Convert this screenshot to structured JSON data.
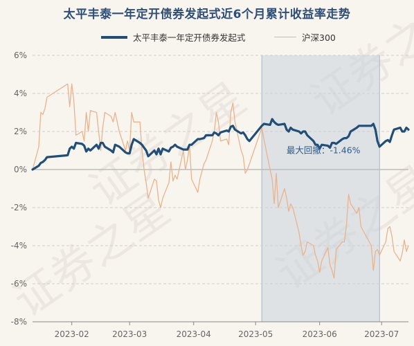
{
  "chart_data": {
    "type": "line",
    "title": "太平丰泰一年定开债券发起式近6个月累计收益率走势",
    "xlabel": "",
    "ylabel": "",
    "ylim": [
      -8,
      6
    ],
    "y_ticks": [
      "6%",
      "4%",
      "2%",
      "0%",
      "-2%",
      "-4%",
      "-6%",
      "-8%"
    ],
    "x_ticks": [
      "2023-02",
      "2023-03",
      "2023-04",
      "2023-05",
      "2023-06",
      "2023-07"
    ],
    "x_range": [
      "2023-01-13",
      "2023-07-14"
    ],
    "grid": true,
    "legend_position": "top-center",
    "annotation": "最大回撤：-1.46%",
    "drawdown_range": [
      "2023-05-04",
      "2023-06-30"
    ],
    "watermark": "证券之星",
    "series": [
      {
        "name": "太平丰泰一年定开债券发起式",
        "color": "#1f4e79",
        "x": [
          "2023-01-13",
          "2023-01-16",
          "2023-01-17",
          "2023-01-18",
          "2023-01-19",
          "2023-01-20",
          "2023-01-30",
          "2023-01-31",
          "2023-02-01",
          "2023-02-02",
          "2023-02-03",
          "2023-02-06",
          "2023-02-07",
          "2023-02-08",
          "2023-02-09",
          "2023-02-10",
          "2023-02-13",
          "2023-02-14",
          "2023-02-15",
          "2023-02-16",
          "2023-02-17",
          "2023-02-20",
          "2023-02-21",
          "2023-02-22",
          "2023-02-23",
          "2023-02-24",
          "2023-02-27",
          "2023-02-28",
          "2023-03-01",
          "2023-03-02",
          "2023-03-03",
          "2023-03-06",
          "2023-03-07",
          "2023-03-08",
          "2023-03-09",
          "2023-03-10",
          "2023-03-13",
          "2023-03-14",
          "2023-03-15",
          "2023-03-16",
          "2023-03-17",
          "2023-03-20",
          "2023-03-21",
          "2023-03-22",
          "2023-03-23",
          "2023-03-24",
          "2023-03-27",
          "2023-03-28",
          "2023-03-29",
          "2023-03-30",
          "2023-03-31",
          "2023-04-03",
          "2023-04-04",
          "2023-04-06",
          "2023-04-07",
          "2023-04-10",
          "2023-04-11",
          "2023-04-12",
          "2023-04-13",
          "2023-04-14",
          "2023-04-17",
          "2023-04-18",
          "2023-04-19",
          "2023-04-20",
          "2023-04-21",
          "2023-04-24",
          "2023-04-25",
          "2023-04-26",
          "2023-04-27",
          "2023-04-28",
          "2023-05-04",
          "2023-05-05",
          "2023-05-08",
          "2023-05-09",
          "2023-05-10",
          "2023-05-11",
          "2023-05-12",
          "2023-05-15",
          "2023-05-16",
          "2023-05-17",
          "2023-05-18",
          "2023-05-19",
          "2023-05-22",
          "2023-05-23",
          "2023-05-24",
          "2023-05-25",
          "2023-05-26",
          "2023-05-29",
          "2023-05-30",
          "2023-05-31",
          "2023-06-01",
          "2023-06-02",
          "2023-06-05",
          "2023-06-06",
          "2023-06-07",
          "2023-06-08",
          "2023-06-09",
          "2023-06-12",
          "2023-06-13",
          "2023-06-14",
          "2023-06-15",
          "2023-06-16",
          "2023-06-19",
          "2023-06-20",
          "2023-06-21",
          "2023-06-26",
          "2023-06-27",
          "2023-06-28",
          "2023-06-29",
          "2023-06-30",
          "2023-07-03",
          "2023-07-04",
          "2023-07-05",
          "2023-07-06",
          "2023-07-07",
          "2023-07-10",
          "2023-07-11",
          "2023-07-12",
          "2023-07-13",
          "2023-07-14"
        ],
        "values": [
          0.0,
          0.2,
          0.35,
          0.4,
          0.5,
          0.65,
          0.75,
          1.1,
          1.2,
          1.1,
          1.4,
          1.35,
          1.25,
          0.95,
          1.1,
          1.0,
          1.3,
          1.1,
          1.4,
          1.4,
          1.2,
          1.0,
          0.9,
          1.3,
          1.25,
          1.2,
          0.9,
          0.85,
          0.85,
          1.3,
          1.6,
          1.4,
          1.3,
          1.15,
          1.0,
          0.7,
          1.0,
          0.8,
          1.1,
          0.8,
          1.1,
          0.95,
          1.15,
          1.2,
          1.3,
          1.2,
          1.05,
          1.05,
          1.05,
          1.3,
          1.3,
          1.6,
          1.6,
          1.65,
          1.8,
          1.8,
          1.95,
          1.9,
          1.8,
          1.95,
          2.05,
          2.0,
          2.25,
          2.3,
          2.1,
          1.9,
          1.95,
          1.8,
          1.6,
          1.5,
          2.3,
          2.4,
          2.35,
          2.65,
          2.5,
          2.4,
          2.35,
          2.4,
          2.1,
          2.0,
          2.2,
          2.1,
          2.0,
          1.9,
          2.0,
          2.0,
          1.8,
          1.5,
          1.3,
          1.3,
          1.1,
          1.3,
          1.25,
          1.15,
          1.4,
          1.4,
          1.35,
          1.6,
          1.65,
          1.65,
          1.75,
          2.0,
          2.2,
          2.3,
          2.3,
          2.3,
          2.4,
          2.1,
          1.5,
          1.2,
          1.5,
          1.55,
          1.45,
          1.8,
          2.1,
          2.2,
          2.0,
          2.0,
          2.2,
          2.1
        ]
      },
      {
        "name": "沪深300",
        "color": "#eab38c",
        "x": [
          "2023-01-13",
          "2023-01-16",
          "2023-01-17",
          "2023-01-18",
          "2023-01-19",
          "2023-01-20",
          "2023-01-30",
          "2023-01-31",
          "2023-02-01",
          "2023-02-02",
          "2023-02-03",
          "2023-02-06",
          "2023-02-07",
          "2023-02-08",
          "2023-02-09",
          "2023-02-10",
          "2023-02-13",
          "2023-02-14",
          "2023-02-15",
          "2023-02-16",
          "2023-02-17",
          "2023-02-20",
          "2023-02-21",
          "2023-02-22",
          "2023-02-23",
          "2023-02-24",
          "2023-02-27",
          "2023-02-28",
          "2023-03-01",
          "2023-03-02",
          "2023-03-03",
          "2023-03-06",
          "2023-03-07",
          "2023-03-08",
          "2023-03-09",
          "2023-03-10",
          "2023-03-13",
          "2023-03-14",
          "2023-03-15",
          "2023-03-16",
          "2023-03-17",
          "2023-03-20",
          "2023-03-21",
          "2023-03-22",
          "2023-03-23",
          "2023-03-24",
          "2023-03-27",
          "2023-03-28",
          "2023-03-29",
          "2023-03-30",
          "2023-03-31",
          "2023-04-03",
          "2023-04-04",
          "2023-04-06",
          "2023-04-07",
          "2023-04-10",
          "2023-04-11",
          "2023-04-12",
          "2023-04-13",
          "2023-04-14",
          "2023-04-17",
          "2023-04-18",
          "2023-04-19",
          "2023-04-20",
          "2023-04-21",
          "2023-04-24",
          "2023-04-25",
          "2023-04-26",
          "2023-04-27",
          "2023-04-28",
          "2023-05-04",
          "2023-05-05",
          "2023-05-08",
          "2023-05-09",
          "2023-05-10",
          "2023-05-11",
          "2023-05-12",
          "2023-05-15",
          "2023-05-16",
          "2023-05-17",
          "2023-05-18",
          "2023-05-19",
          "2023-05-22",
          "2023-05-23",
          "2023-05-24",
          "2023-05-25",
          "2023-05-26",
          "2023-05-29",
          "2023-05-30",
          "2023-05-31",
          "2023-06-01",
          "2023-06-02",
          "2023-06-05",
          "2023-06-06",
          "2023-06-07",
          "2023-06-08",
          "2023-06-09",
          "2023-06-12",
          "2023-06-13",
          "2023-06-14",
          "2023-06-15",
          "2023-06-16",
          "2023-06-19",
          "2023-06-20",
          "2023-06-21",
          "2023-06-26",
          "2023-06-27",
          "2023-06-28",
          "2023-06-29",
          "2023-06-30",
          "2023-07-03",
          "2023-07-04",
          "2023-07-05",
          "2023-07-06",
          "2023-07-07",
          "2023-07-10",
          "2023-07-11",
          "2023-07-12",
          "2023-07-13",
          "2023-07-14"
        ],
        "values": [
          0.0,
          1.2,
          3.0,
          2.9,
          3.2,
          3.8,
          4.5,
          3.3,
          4.5,
          3.6,
          1.8,
          2.0,
          1.5,
          3.0,
          2.0,
          3.1,
          3.0,
          2.0,
          1.0,
          2.2,
          3.0,
          2.8,
          2.5,
          3.0,
          2.5,
          2.0,
          1.0,
          1.5,
          1.0,
          3.0,
          2.5,
          2.5,
          1.0,
          0.0,
          -0.7,
          -1.5,
          -0.5,
          -0.6,
          -1.6,
          -2.0,
          -1.5,
          -0.7,
          0.4,
          -0.6,
          -0.3,
          -0.5,
          1.0,
          0.0,
          0.5,
          1.3,
          -0.5,
          -1.2,
          -0.5,
          0.3,
          0.5,
          1.5,
          2.0,
          3.0,
          2.5,
          1.5,
          1.6,
          1.3,
          3.0,
          3.5,
          2.5,
          1.0,
          0.7,
          -0.2,
          0.0,
          0.3,
          2.2,
          1.6,
          0.0,
          -0.5,
          -1.8,
          -0.2,
          -2.0,
          -1.0,
          -1.5,
          -2.2,
          -1.8,
          -2.0,
          -3.3,
          -4.0,
          -4.5,
          -4.3,
          -3.8,
          -4.0,
          -4.5,
          -4.8,
          -5.4,
          -4.8,
          -4.1,
          -5.0,
          -5.3,
          -5.7,
          -4.2,
          -3.8,
          -3.8,
          -2.9,
          -1.3,
          -1.8,
          -2.3,
          -2.0,
          -3.0,
          -4.0,
          -5.3,
          -4.3,
          -4.2,
          -4.5,
          -3.8,
          -3.1,
          -3.0,
          -3.5,
          -4.3,
          -4.8,
          -4.4,
          -3.7,
          -4.3,
          -4.0
        ]
      }
    ]
  }
}
